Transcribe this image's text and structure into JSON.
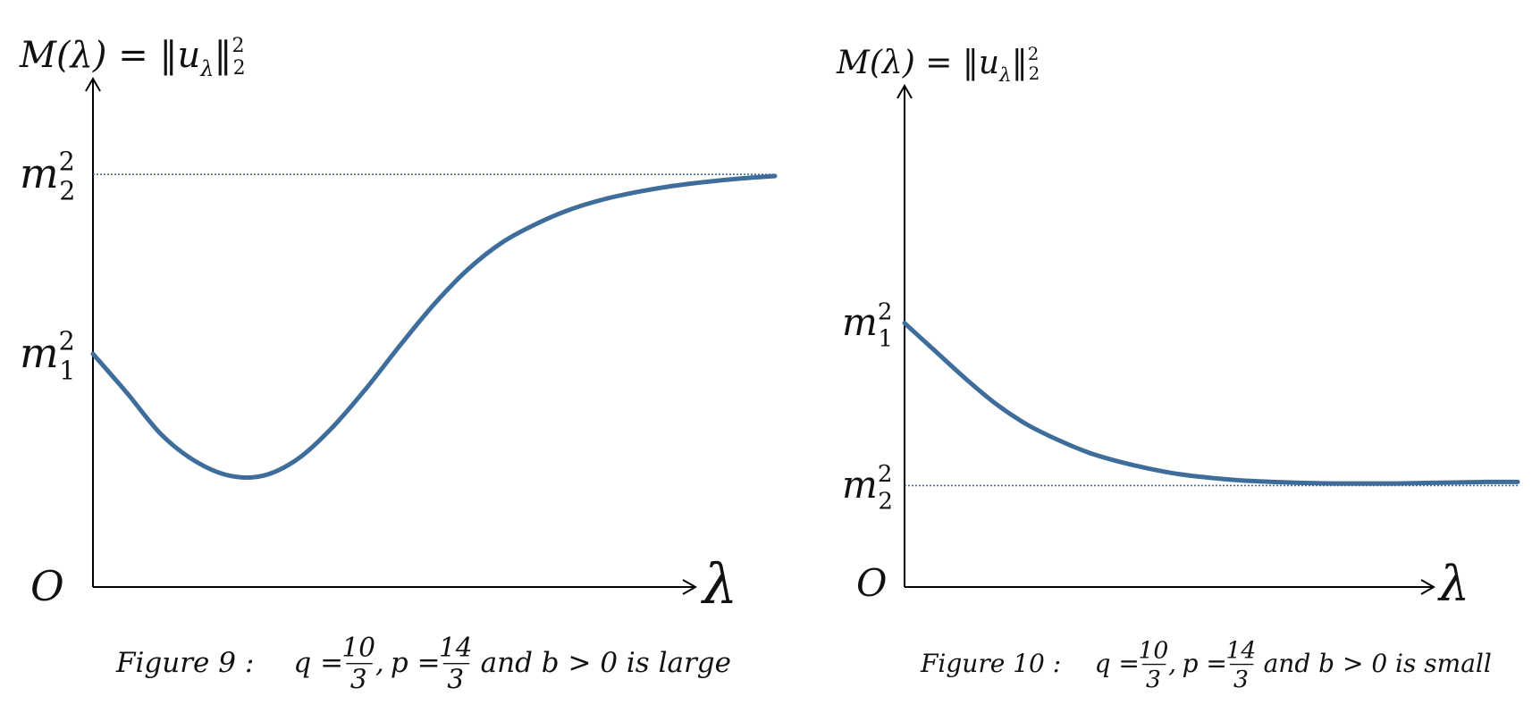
{
  "chart_data": [
    {
      "type": "line",
      "caption": {
        "label": "Figure 9 :",
        "q_var": "q =",
        "q_num": "10",
        "q_den": "3",
        "sep": ",",
        "p_var": "p =",
        "p_num": "14",
        "p_den": "3",
        "tail": "and b > 0 is large"
      },
      "ylabel": {
        "main": "M(λ) = ‖u",
        "sub": "λ",
        "close": "‖",
        "sup": "2",
        "sub2": "2"
      },
      "xlabel": "λ",
      "origin_label": "O",
      "yticks": [
        {
          "base": "m",
          "sub": "2",
          "sup": "2",
          "value": 1.0
        },
        {
          "base": "m",
          "sub": "1",
          "sup": "2",
          "value": 0.565
        }
      ],
      "asymptote": 1.0,
      "xlim": [
        0,
        1
      ],
      "ylim": [
        0,
        1.1
      ],
      "color": "#3F6D9B",
      "series": [
        {
          "x": [
            0,
            0.05,
            0.1,
            0.15,
            0.2,
            0.25,
            0.3,
            0.35,
            0.4,
            0.45,
            0.5,
            0.55,
            0.6,
            0.65,
            0.7,
            0.75,
            0.8,
            0.85,
            0.9,
            0.95,
            1.0
          ],
          "y": [
            0.565,
            0.47,
            0.37,
            0.305,
            0.27,
            0.27,
            0.31,
            0.385,
            0.48,
            0.585,
            0.685,
            0.77,
            0.835,
            0.88,
            0.915,
            0.94,
            0.958,
            0.972,
            0.982,
            0.99,
            0.996
          ]
        }
      ]
    },
    {
      "type": "line",
      "caption": {
        "label": "Figure 10 :",
        "q_var": "q =",
        "q_num": "10",
        "q_den": "3",
        "sep": ",",
        "p_var": "p =",
        "p_num": "14",
        "p_den": "3",
        "tail": "and b > 0 is small"
      },
      "ylabel": {
        "main": "M(λ) = ‖u",
        "sub": "λ",
        "close": "‖",
        "sup": "2",
        "sub2": "2"
      },
      "xlabel": "λ",
      "origin_label": "O",
      "yticks": [
        {
          "base": "m",
          "sub": "1",
          "sup": "2",
          "value": 0.52
        },
        {
          "base": "m",
          "sub": "2",
          "sup": "2",
          "value": 0.2
        }
      ],
      "asymptote": 0.2,
      "xlim": [
        0,
        1
      ],
      "ylim": [
        0,
        1.0
      ],
      "color": "#3F6D9B",
      "series": [
        {
          "x": [
            0,
            0.05,
            0.1,
            0.15,
            0.2,
            0.25,
            0.3,
            0.35,
            0.4,
            0.45,
            0.5,
            0.55,
            0.6,
            0.65,
            0.7,
            0.75,
            0.8,
            0.85,
            0.9,
            0.95,
            1.0
          ],
          "y": [
            0.52,
            0.465,
            0.41,
            0.36,
            0.32,
            0.29,
            0.265,
            0.247,
            0.233,
            0.222,
            0.215,
            0.21,
            0.207,
            0.205,
            0.204,
            0.204,
            0.204,
            0.205,
            0.206,
            0.207,
            0.207
          ]
        }
      ]
    }
  ]
}
